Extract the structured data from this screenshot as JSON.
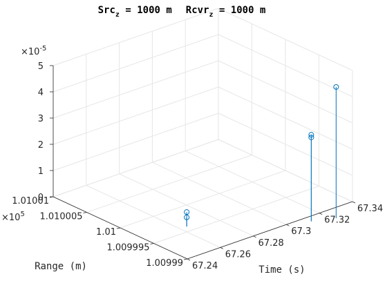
{
  "chart_data": {
    "type": "stem3",
    "title_parts": {
      "src_base": "Src",
      "src_sub": "z",
      "src_rest": " = 1000 m",
      "rcv_base": "Rcvr",
      "rcv_sub": "z",
      "rcv_rest": " = 1000 m"
    },
    "xlabel": "Time (s)",
    "ylabel": "Range (m)",
    "zlabel": "",
    "x_ticks": [
      "67.24",
      "67.26",
      "67.28",
      "67.3",
      "67.32",
      "67.34"
    ],
    "y_ticks": [
      "1.00999",
      "1.009995",
      "1.01",
      "1.010005",
      "1.01001"
    ],
    "z_ticks": [
      "0",
      "1",
      "2",
      "3",
      "4",
      "5"
    ],
    "y_multiplier": "×10",
    "y_multiplier_exp": "5",
    "z_multiplier": "×10",
    "z_multiplier_exp": "-5",
    "xlim": [
      67.24,
      67.34
    ],
    "ylim": [
      1.00999,
      1.01001
    ],
    "zlim": [
      0,
      5
    ],
    "grid": true,
    "series_color": "#0072bd",
    "points": [
      {
        "x": 67.264,
        "y": 1.010004,
        "z": 0.35
      },
      {
        "x": 67.264,
        "y": 1.010004,
        "z": 0.55
      },
      {
        "x": 67.311,
        "y": 1.010011,
        "z": 3.2
      },
      {
        "x": 67.311,
        "y": 1.010011,
        "z": 3.3
      },
      {
        "x": 67.322,
        "y": 1.010012,
        "z": 5.0
      }
    ]
  }
}
